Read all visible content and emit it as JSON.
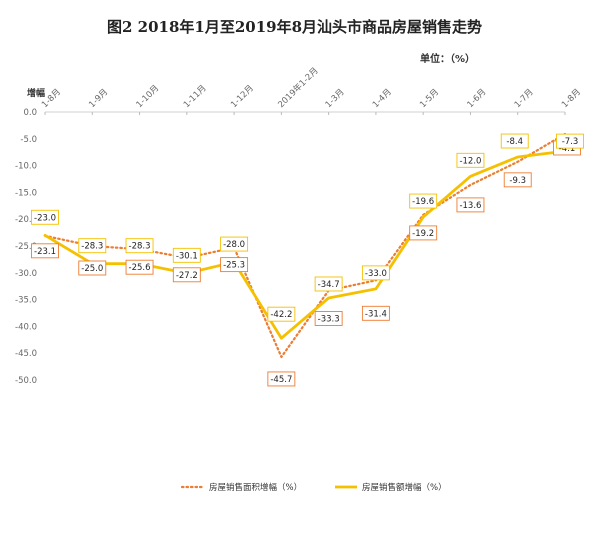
{
  "header": {
    "title": "图2   2018年1月至2019年8月汕头市商品房屋销售走势",
    "unit": "单位：（%）"
  },
  "chart_data": {
    "type": "line",
    "title": "图2   2018年1月至2019年8月汕头市商品房屋销售走势",
    "ylabel": "增幅",
    "ylim": [
      -50,
      0
    ],
    "yticks": [
      "0.0",
      "-5.0",
      "-10.0",
      "-15.0",
      "-20.0",
      "-25.0",
      "-30.0",
      "-35.0",
      "-40.0",
      "-45.0",
      "-50.0"
    ],
    "categories": [
      "1-8月",
      "1-9月",
      "1-10月",
      "1-11月",
      "1-12月",
      "2019年1-2月",
      "1-3月",
      "1-4月",
      "1-5月",
      "1-6月",
      "1-7月",
      "1-8月"
    ],
    "series": [
      {
        "name": "房屋销售面积增幅（%）",
        "color": "#ED7D31",
        "style": "dotted",
        "values": [
          -23.1,
          -25.0,
          -25.6,
          -27.2,
          -25.3,
          -45.7,
          -33.3,
          -31.4,
          -19.2,
          -13.6,
          -9.3,
          -4.1
        ],
        "labels": [
          "-23.1",
          "-25.0",
          "-25.6",
          "-27.2",
          "-25.3",
          "-45.7",
          "-33.3",
          "-31.4",
          "-19.2",
          "-13.6",
          "-9.3",
          "-4.1"
        ]
      },
      {
        "name": "房屋销售额增幅（%）",
        "color": "#F5C000",
        "style": "solid",
        "values": [
          -23.0,
          -28.3,
          -28.3,
          -30.1,
          -28.0,
          -42.2,
          -34.7,
          -33.0,
          -19.6,
          -12.0,
          -8.4,
          -7.3
        ],
        "labels": [
          "-23.0",
          "-28.3",
          "-28.3",
          "-30.1",
          "-28.0",
          "-42.2",
          "-34.7",
          "-33.0",
          "-19.6",
          "-12.0",
          "-8.4",
          "-7.3"
        ]
      }
    ],
    "grid": false,
    "legend": "bottom"
  }
}
